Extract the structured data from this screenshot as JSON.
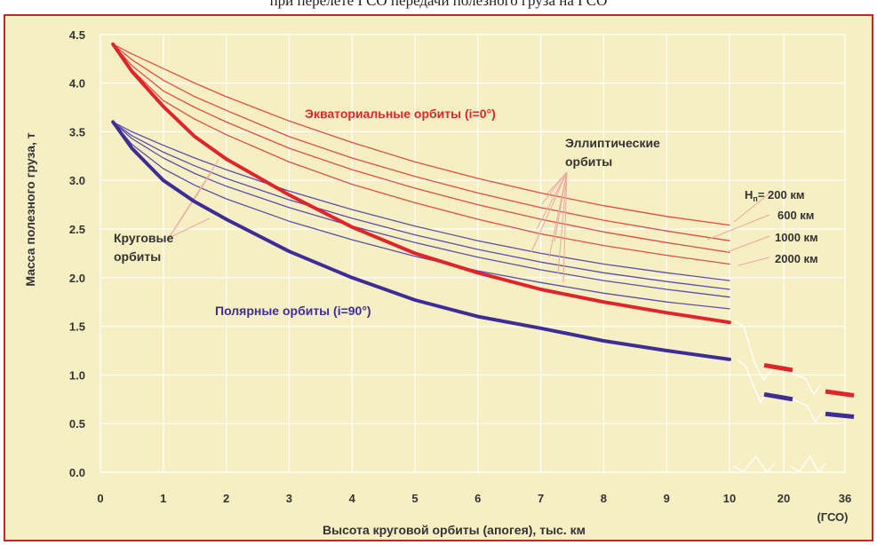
{
  "caption": "при перелёте ГСО передачи полезного груза на ГСО",
  "chart_data": {
    "type": "line",
    "title": "",
    "ylabel": "Масса полезного груза, т",
    "xlabel": "Высота круговой орбиты (апогея), тыс. км",
    "ylim": [
      0,
      4.5
    ],
    "xlim": [
      0,
      10
    ],
    "grid": true,
    "y_ticks": [
      "0.0",
      "0.5",
      "1.0",
      "1.5",
      "2.0",
      "2.5",
      "3.0",
      "3.5",
      "4.0",
      "4.5"
    ],
    "x_ticks": [
      "0",
      "1",
      "2",
      "3",
      "4",
      "5",
      "6",
      "7",
      "8",
      "9",
      "10"
    ],
    "x_broken_ticks": [
      "20",
      "36"
    ],
    "geo_label": "(ГСО)",
    "x": [
      0.2,
      0.5,
      1,
      1.5,
      2,
      3,
      4,
      5,
      6,
      7,
      8,
      9,
      10
    ],
    "series": [
      {
        "name": "Экваториальные орбиты (i=0°)",
        "group": "equatorial",
        "kind": "circular",
        "values": [
          4.4,
          4.12,
          3.76,
          3.45,
          3.22,
          2.85,
          2.52,
          2.25,
          2.05,
          1.88,
          1.75,
          1.64,
          1.54
        ],
        "broken": [
          {
            "x": "20",
            "y": [
              1.1,
              1.05
            ]
          },
          {
            "x": "36",
            "y": [
              0.83,
              0.79
            ]
          }
        ]
      },
      {
        "name": "Полярные орбиты (i=90°)",
        "group": "polar",
        "kind": "circular",
        "values": [
          3.6,
          3.33,
          3.0,
          2.78,
          2.6,
          2.27,
          2.0,
          1.77,
          1.6,
          1.48,
          1.35,
          1.25,
          1.16
        ],
        "broken": [
          {
            "x": "20",
            "y": [
              0.8,
              0.75
            ]
          },
          {
            "x": "36",
            "y": [
              0.6,
              0.57
            ]
          }
        ]
      },
      {
        "name": "Hп= 200 км",
        "group": "equatorial",
        "kind": "elliptic",
        "values": [
          4.4,
          4.3,
          4.15,
          4.0,
          3.86,
          3.61,
          3.39,
          3.19,
          3.02,
          2.87,
          2.74,
          2.63,
          2.54
        ]
      },
      {
        "name": "600 км",
        "group": "equatorial",
        "kind": "elliptic",
        "values": [
          4.4,
          4.24,
          4.03,
          3.86,
          3.72,
          3.45,
          3.23,
          3.04,
          2.87,
          2.72,
          2.59,
          2.48,
          2.38
        ]
      },
      {
        "name": "1000 км",
        "group": "equatorial",
        "kind": "elliptic",
        "values": [
          4.4,
          4.18,
          3.92,
          3.75,
          3.6,
          3.33,
          3.11,
          2.92,
          2.75,
          2.6,
          2.47,
          2.36,
          2.26
        ]
      },
      {
        "name": "2000 км",
        "group": "equatorial",
        "kind": "elliptic",
        "values": [
          4.4,
          4.14,
          3.82,
          3.63,
          3.47,
          3.19,
          2.96,
          2.77,
          2.6,
          2.45,
          2.33,
          2.23,
          2.14
        ]
      },
      {
        "name": "Hп= 200 км",
        "group": "polar",
        "kind": "elliptic",
        "values": [
          3.6,
          3.5,
          3.36,
          3.23,
          3.11,
          2.89,
          2.7,
          2.53,
          2.38,
          2.25,
          2.14,
          2.05,
          1.97
        ]
      },
      {
        "name": "600 км",
        "group": "polar",
        "kind": "elliptic",
        "values": [
          3.6,
          3.46,
          3.29,
          3.15,
          3.02,
          2.8,
          2.61,
          2.44,
          2.29,
          2.16,
          2.05,
          1.96,
          1.88
        ]
      },
      {
        "name": "1000 км",
        "group": "polar",
        "kind": "elliptic",
        "values": [
          3.6,
          3.43,
          3.23,
          3.07,
          2.94,
          2.72,
          2.53,
          2.36,
          2.21,
          2.08,
          1.97,
          1.88,
          1.8
        ]
      },
      {
        "name": "2000 км",
        "group": "polar",
        "kind": "elliptic",
        "values": [
          3.6,
          3.37,
          3.12,
          2.95,
          2.81,
          2.58,
          2.39,
          2.22,
          2.07,
          1.95,
          1.84,
          1.75,
          1.68
        ]
      }
    ],
    "annotations": {
      "equatorial": "Экваториальные орбиты (i=0°)",
      "polar": "Полярные орбиты (i=90°)",
      "elliptic_1": "Эллиптические",
      "elliptic_2": "орбиты",
      "circular_1": "Круговые",
      "circular_2": "орбиты",
      "hp_prefix": "H",
      "hp_sub": "п",
      "hp_labels": [
        "= 200 км",
        "600 км",
        "1000 км",
        "2000 км"
      ]
    },
    "colors": {
      "background": "#f7efc4",
      "frame": "#c4262b",
      "equatorial": "#e0242c",
      "polar": "#3f2d97",
      "equatorial_thin": "#e04d42",
      "polar_thin": "#5a4fa6",
      "grid": "#ffffff",
      "leader": "#e9a8a0"
    }
  }
}
